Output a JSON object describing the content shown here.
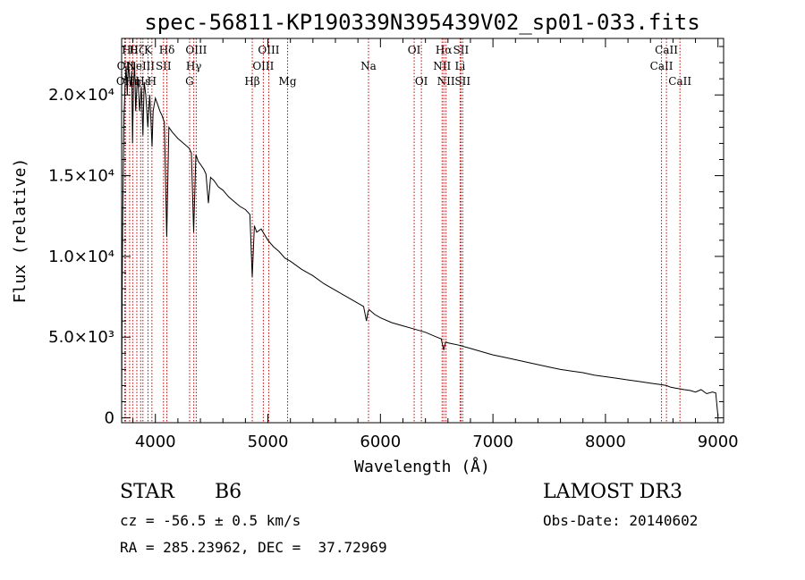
{
  "chart_data": {
    "type": "line",
    "title": "spec-56811-KP190339N395439V02_sp01-033.fits",
    "xlabel": "Wavelength (Å)",
    "ylabel": "Flux (relative)",
    "xlim": [
      3700,
      9050
    ],
    "ylim": [
      -300,
      23500
    ],
    "x_ticks": [
      {
        "value": 4000,
        "label": "4000"
      },
      {
        "value": 5000,
        "label": "5000"
      },
      {
        "value": 6000,
        "label": "6000"
      },
      {
        "value": 7000,
        "label": "7000"
      },
      {
        "value": 8000,
        "label": "8000"
      },
      {
        "value": 9000,
        "label": "9000"
      }
    ],
    "y_ticks": [
      {
        "value": 0,
        "label": "0"
      },
      {
        "value": 5000,
        "label": "5.0×10³"
      },
      {
        "value": 10000,
        "label": "1.0×10⁴"
      },
      {
        "value": 15000,
        "label": "1.5×10⁴"
      },
      {
        "value": 20000,
        "label": "2.0×10⁴"
      }
    ],
    "series": [
      {
        "name": "flux",
        "x": [
          3700,
          3705,
          3710,
          3720,
          3730,
          3740,
          3750,
          3760,
          3770,
          3780,
          3790,
          3797,
          3805,
          3815,
          3825,
          3835,
          3845,
          3860,
          3875,
          3889,
          3900,
          3915,
          3933,
          3950,
          3960,
          3970,
          3980,
          4000,
          4020,
          4040,
          4060,
          4080,
          4101,
          4120,
          4150,
          4200,
          4250,
          4300,
          4320,
          4340,
          4360,
          4380,
          4400,
          4430,
          4450,
          4471,
          4490,
          4520,
          4560,
          4600,
          4650,
          4700,
          4750,
          4800,
          4840,
          4861,
          4880,
          4900,
          4940,
          5000,
          5050,
          5100,
          5150,
          5200,
          5300,
          5400,
          5500,
          5600,
          5700,
          5800,
          5850,
          5876,
          5890,
          5900,
          5950,
          6000,
          6100,
          6200,
          6300,
          6400,
          6500,
          6540,
          6563,
          6580,
          6600,
          6700,
          6800,
          6900,
          7000,
          7100,
          7200,
          7300,
          7400,
          7500,
          7600,
          7700,
          7800,
          7900,
          8000,
          8100,
          8200,
          8300,
          8400,
          8500,
          8542,
          8580,
          8620,
          8662,
          8700,
          8750,
          8800,
          8850,
          8900,
          8950,
          8980,
          9000
        ],
        "y": [
          500,
          8000,
          13000,
          18500,
          20500,
          21800,
          20000,
          22000,
          21000,
          20500,
          21500,
          17000,
          20500,
          22000,
          19000,
          20500,
          21000,
          19000,
          20500,
          17500,
          20800,
          20000,
          18000,
          20000,
          18500,
          16800,
          19000,
          19800,
          19400,
          19000,
          18700,
          18300,
          11200,
          18000,
          17700,
          17300,
          17000,
          16700,
          16400,
          11500,
          16300,
          15900,
          15700,
          15400,
          15100,
          13300,
          14900,
          14700,
          14300,
          14100,
          13700,
          13400,
          13100,
          12900,
          12600,
          8700,
          11900,
          11500,
          11700,
          11000,
          10600,
          10300,
          9900,
          9700,
          9200,
          8800,
          8300,
          7900,
          7500,
          7100,
          6900,
          6000,
          6600,
          6700,
          6400,
          6200,
          5900,
          5700,
          5500,
          5300,
          5000,
          4900,
          4200,
          4700,
          4650,
          4500,
          4300,
          4100,
          3900,
          3750,
          3600,
          3450,
          3300,
          3150,
          3000,
          2900,
          2800,
          2650,
          2550,
          2450,
          2350,
          2250,
          2150,
          2050,
          2000,
          1900,
          1850,
          1800,
          1750,
          1700,
          1600,
          1750,
          1500,
          1600,
          1550,
          100
        ]
      }
    ],
    "emission_lines": [
      {
        "wave": 3728,
        "label": "OII",
        "row": 2
      },
      {
        "wave": 3734,
        "label": "OII",
        "row": 1
      },
      {
        "wave": 3771,
        "label": "Hθ",
        "row": 0
      },
      {
        "wave": 3798,
        "label": "Hη",
        "row": 2
      },
      {
        "wave": 3835,
        "label": "Hζ",
        "row": 0
      },
      {
        "wave": 3869,
        "label": "NeIII",
        "row": 1
      },
      {
        "wave": 3889,
        "label": "Hε",
        "row": 2
      },
      {
        "wave": 3934,
        "label": "K",
        "row": 0
      },
      {
        "wave": 3969,
        "label": "H",
        "row": 2
      },
      {
        "wave": 4072,
        "label": "SII",
        "row": 1
      },
      {
        "wave": 4102,
        "label": "Hδ",
        "row": 0
      },
      {
        "wave": 4304,
        "label": "G",
        "row": 2
      },
      {
        "wave": 4341,
        "label": "Hγ",
        "row": 1
      },
      {
        "wave": 4363,
        "label": "OIII",
        "row": 0
      },
      {
        "wave": 4861,
        "label": "Hβ",
        "row": 2
      },
      {
        "wave": 4959,
        "label": "OIII",
        "row": 1
      },
      {
        "wave": 5007,
        "label": "OIII",
        "row": 0
      },
      {
        "wave": 5175,
        "label": "Mg",
        "row": 2
      },
      {
        "wave": 5894,
        "label": "Na",
        "row": 1
      },
      {
        "wave": 6300,
        "label": "OI",
        "row": 0
      },
      {
        "wave": 6364,
        "label": "OI",
        "row": 2
      },
      {
        "wave": 6548,
        "label": "NII",
        "row": 1
      },
      {
        "wave": 6563,
        "label": "Hα",
        "row": 0
      },
      {
        "wave": 6583,
        "label": "NII",
        "row": 2
      },
      {
        "wave": 6708,
        "label": "Li",
        "row": 1
      },
      {
        "wave": 6716,
        "label": "SII",
        "row": 0
      },
      {
        "wave": 6731,
        "label": "SII",
        "row": 2
      },
      {
        "wave": 8498,
        "label": "CaII",
        "row": 1
      },
      {
        "wave": 8542,
        "label": "CaII",
        "row": 0
      },
      {
        "wave": 8662,
        "label": "CaII",
        "row": 2
      }
    ]
  },
  "info": {
    "class": "STAR",
    "subclass": "B6",
    "survey": "LAMOST DR3",
    "cz": "cz = -56.5 ± 0.5 km/s",
    "obs_date": "Obs-Date: 20140602",
    "coords": "RA = 285.23962, DEC =  37.72969"
  },
  "colors": {
    "line_marker": "#cc0000",
    "spectrum": "#000000"
  }
}
